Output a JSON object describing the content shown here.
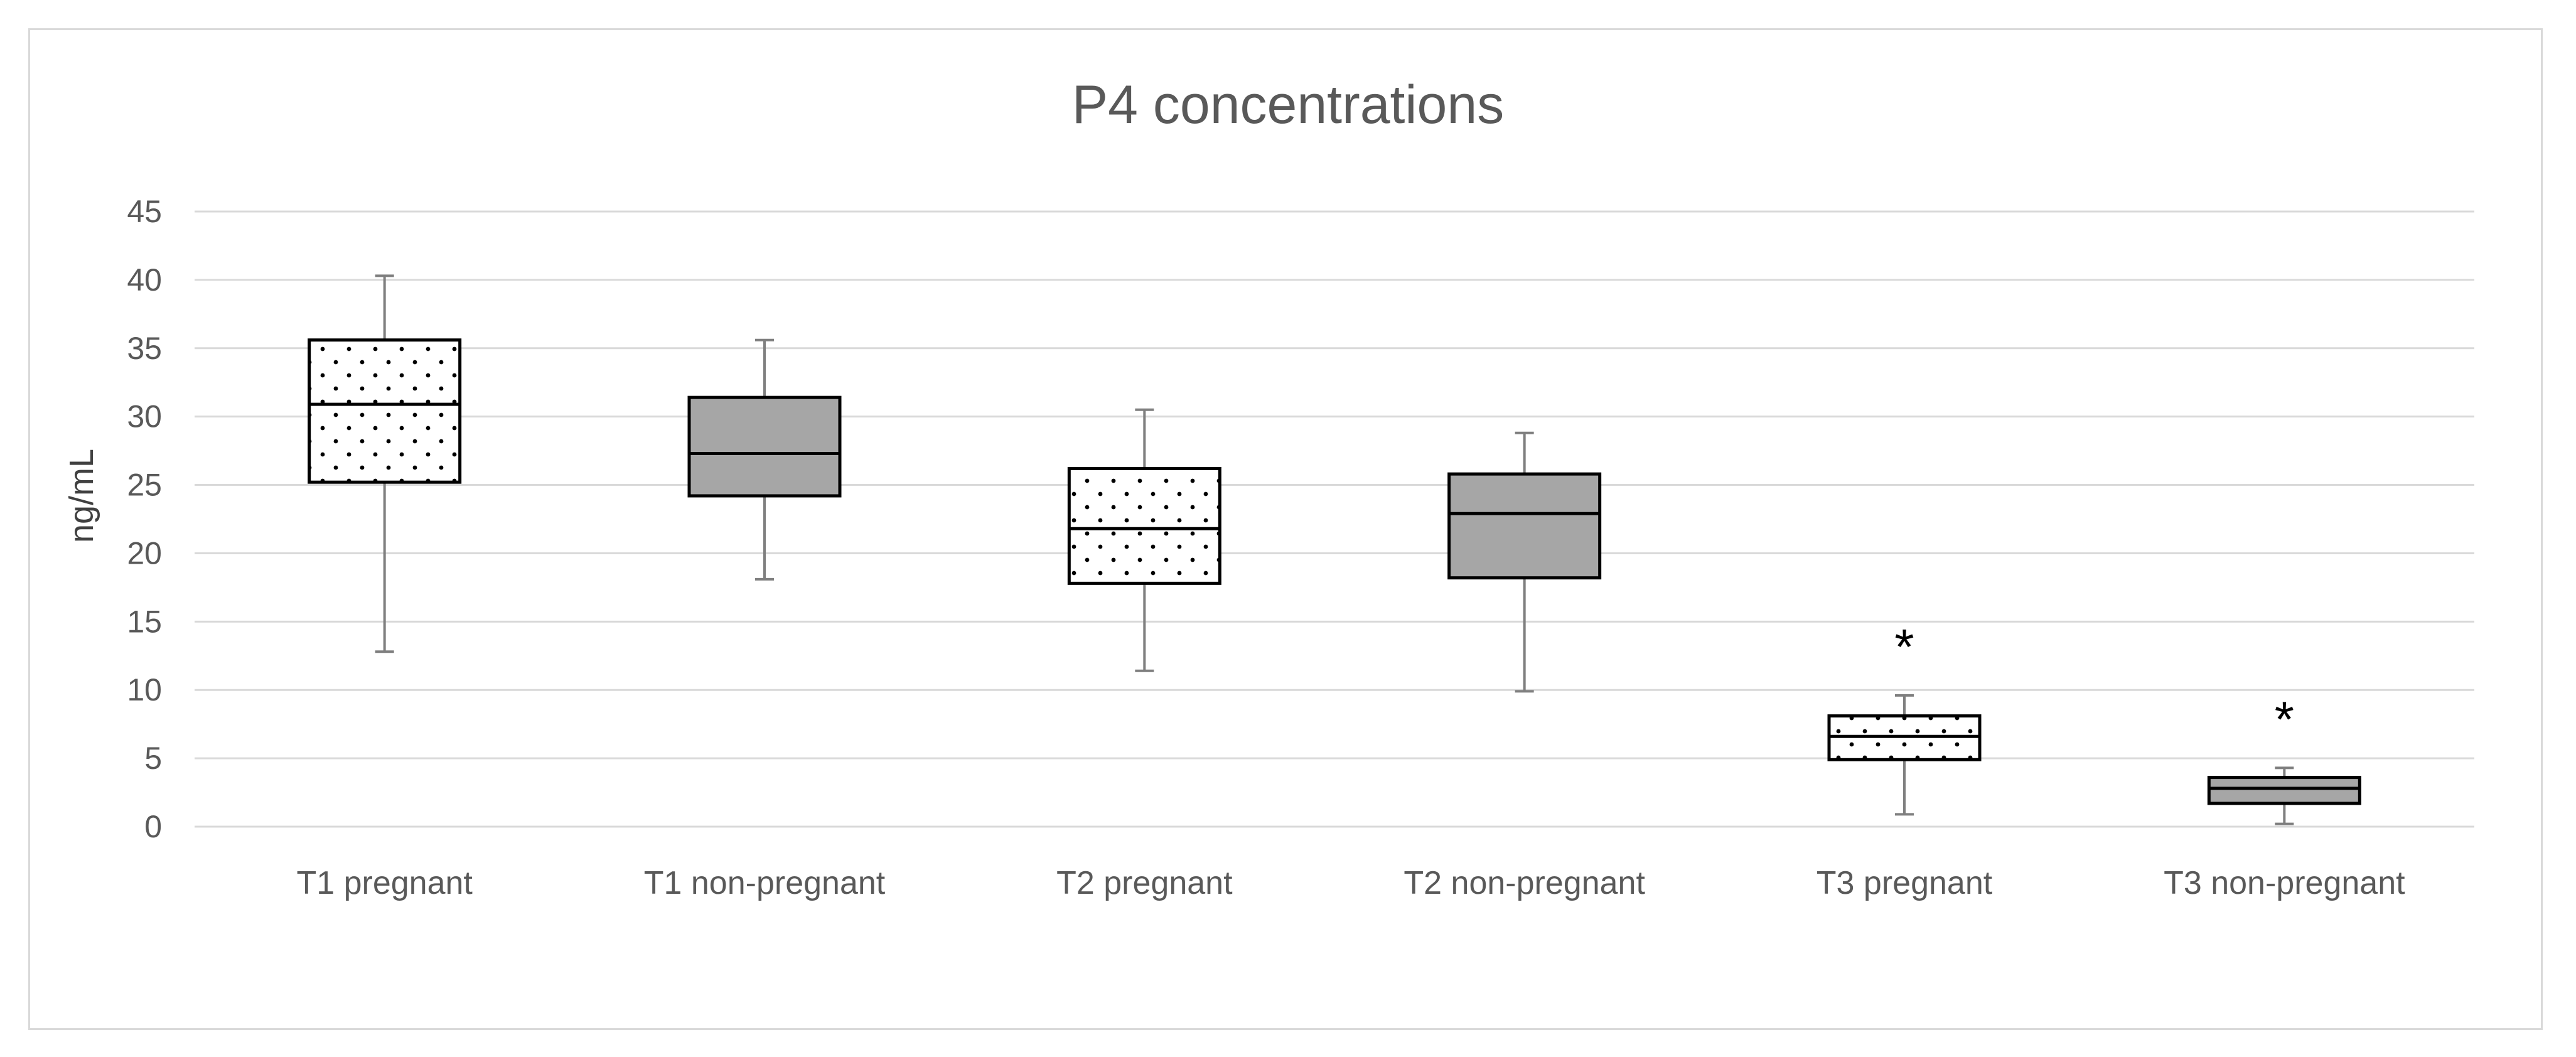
{
  "chart_data": {
    "type": "box",
    "title": "P4 concentrations",
    "ylabel": "ng/mL",
    "xlabel": "",
    "ylim": [
      0,
      45
    ],
    "yticks": [
      0,
      5,
      10,
      15,
      20,
      25,
      30,
      35,
      40,
      45
    ],
    "grid": true,
    "categories": [
      "T1 pregnant",
      "T1 non-pregnant",
      "T2 pregnant",
      "T2 non-pregnant",
      "T3 pregnant",
      "T3 non-pregnant"
    ],
    "boxes": [
      {
        "category": "T1 pregnant",
        "min": 12.8,
        "q1": 25.2,
        "median": 30.9,
        "q3": 35.6,
        "max": 40.3,
        "fill": "dotted",
        "annotation": ""
      },
      {
        "category": "T1 non-pregnant",
        "min": 18.1,
        "q1": 24.2,
        "median": 27.3,
        "q3": 31.4,
        "max": 35.6,
        "fill": "gray",
        "annotation": ""
      },
      {
        "category": "T2 pregnant",
        "min": 11.4,
        "q1": 17.8,
        "median": 21.8,
        "q3": 26.2,
        "max": 30.5,
        "fill": "dotted",
        "annotation": ""
      },
      {
        "category": "T2 non-pregnant",
        "min": 9.9,
        "q1": 18.2,
        "median": 22.9,
        "q3": 25.8,
        "max": 28.8,
        "fill": "gray",
        "annotation": ""
      },
      {
        "category": "T3 pregnant",
        "min": 0.9,
        "q1": 4.9,
        "median": 6.6,
        "q3": 8.1,
        "max": 9.6,
        "fill": "dotted",
        "annotation": "*"
      },
      {
        "category": "T3 non-pregnant",
        "min": 0.2,
        "q1": 1.7,
        "median": 2.8,
        "q3": 3.6,
        "max": 4.3,
        "fill": "gray",
        "annotation": "*"
      }
    ],
    "colors": {
      "gray_fill": "#a6a6a6",
      "gridline": "#d9d9d9",
      "whisker": "#7f7f7f",
      "box_stroke": "#000000",
      "dot": "#000000"
    }
  }
}
